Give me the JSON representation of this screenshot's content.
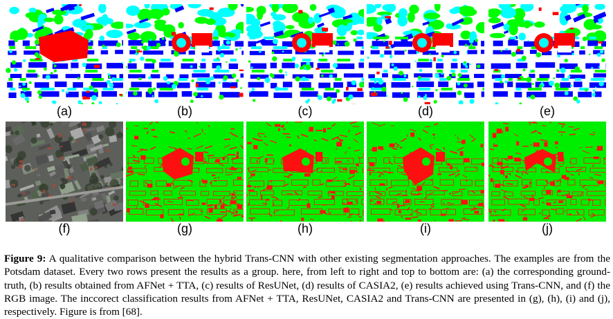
{
  "panels": [
    {
      "label": "(a)",
      "kind": "segmentation"
    },
    {
      "label": "(b)",
      "kind": "segmentation"
    },
    {
      "label": "(c)",
      "kind": "segmentation"
    },
    {
      "label": "(d)",
      "kind": "segmentation"
    },
    {
      "label": "(e)",
      "kind": "segmentation"
    },
    {
      "label": "(f)",
      "kind": "rgb-aerial"
    },
    {
      "label": "(g)",
      "kind": "error-map"
    },
    {
      "label": "(h)",
      "kind": "error-map"
    },
    {
      "label": "(i)",
      "kind": "error-map"
    },
    {
      "label": "(j)",
      "kind": "error-map"
    }
  ],
  "colors": {
    "impervious": "#ffffff",
    "building": "#0000ff",
    "low_vegetation": "#00ffff",
    "tree": "#00ff00",
    "clutter": "#ff0000",
    "correct": "#00ee00",
    "incorrect": "#ff1010"
  },
  "caption": {
    "figure_label": "Figure 9:",
    "text": "A qualitative comparison between the hybrid Trans-CNN with other existing segmentation approaches. The examples are from the Potsdam dataset. Every two rows present the results as a group. here, from left to right and top to bottom are: (a) the corresponding ground-truth, (b) results obtained from AFNet + TTA, (c) results of ResUNet, (d) results of CASIA2, (e) results achieved using Trans-CNN, and (f) the RGB image. The inccorect classification results from AFNet + TTA, ResUNet, CASIA2 and Trans-CNN are presented in (g), (h), (i) and (j), respectively. Figure is from [68]."
  }
}
